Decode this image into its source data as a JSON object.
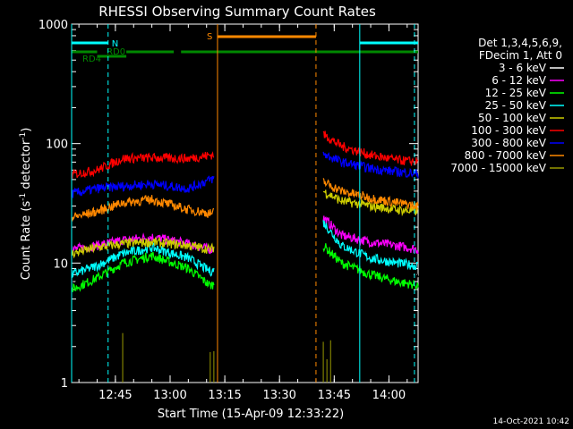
{
  "chart_data": {
    "type": "line",
    "title": "RHESSI Observing Summary Count Rates",
    "xlabel": "Start Time (15-Apr-09 12:33:22)",
    "ylabel_main": "Count Rate (s",
    "ylabel_sup1": "-1",
    "ylabel_mid": " detector",
    "ylabel_sup2": "-1",
    "ylabel_end": ")",
    "y_scale": "log",
    "ylim": [
      1,
      1000
    ],
    "xlim": [
      "12:33",
      "14:08"
    ],
    "x_ticks": [
      "12:45",
      "13:00",
      "13:15",
      "13:30",
      "13:45",
      "14:00"
    ],
    "y_ticks": [
      "1",
      "10",
      "100",
      "1000"
    ],
    "timestamp": "14-Oct-2021 10:42",
    "legend": {
      "header1": "Det 1,3,4,5,6,9,",
      "header2": "FDecim 1, Att 0",
      "placement": "right"
    },
    "series": [
      {
        "name": "3 - 6 keV",
        "color": "#000000",
        "x": [
          "12:33",
          "12:40",
          "12:47",
          "12:55",
          "13:05",
          "13:11",
          "13:42",
          "13:47",
          "13:55",
          "14:02",
          "14:08"
        ],
        "y": [
          6.5,
          7.5,
          11,
          12.5,
          10,
          7,
          16,
          11,
          9.5,
          8.5,
          8
        ]
      },
      {
        "name": "6 - 12 keV",
        "color": "#ff00ff",
        "x": [
          "12:33",
          "12:40",
          "12:47",
          "12:55",
          "13:05",
          "13:11",
          "13:42",
          "13:47",
          "13:55",
          "14:02",
          "14:08"
        ],
        "y": [
          13,
          14,
          15.5,
          16.5,
          14.5,
          13,
          24,
          17,
          15,
          14,
          13
        ]
      },
      {
        "name": "12 - 25 keV",
        "color": "#00ff00",
        "x": [
          "12:33",
          "12:40",
          "12:47",
          "12:55",
          "13:05",
          "13:11",
          "13:42",
          "13:47",
          "13:55",
          "14:02",
          "14:08"
        ],
        "y": [
          6,
          7.5,
          10,
          11.5,
          9,
          6.5,
          14,
          10,
          8,
          7,
          6.5
        ]
      },
      {
        "name": "25 - 50 keV",
        "color": "#00ffff",
        "x": [
          "12:33",
          "12:40",
          "12:47",
          "12:55",
          "13:05",
          "13:11",
          "13:42",
          "13:47",
          "13:55",
          "14:02",
          "14:08"
        ],
        "y": [
          8,
          9.5,
          12,
          13.5,
          11,
          8.5,
          22,
          14,
          11,
          10,
          9.5
        ]
      },
      {
        "name": "50 - 100 keV",
        "color": "#cccc00",
        "x": [
          "12:33",
          "12:40",
          "12:47",
          "12:55",
          "13:05",
          "13:11",
          "13:42",
          "13:47",
          "13:55",
          "14:02",
          "14:08"
        ],
        "y": [
          12,
          13.5,
          14.5,
          15,
          14,
          13,
          40,
          33,
          30,
          28,
          27
        ]
      },
      {
        "name": "100 - 300 keV",
        "color": "#ff0000",
        "x": [
          "12:33",
          "12:40",
          "12:47",
          "12:55",
          "13:05",
          "13:11",
          "13:42",
          "13:47",
          "13:55",
          "14:02",
          "14:08"
        ],
        "y": [
          55,
          60,
          75,
          76,
          75,
          80,
          120,
          95,
          80,
          73,
          70
        ]
      },
      {
        "name": "300 - 800 keV",
        "color": "#0000ff",
        "x": [
          "12:33",
          "12:40",
          "12:47",
          "12:55",
          "13:05",
          "13:11",
          "13:42",
          "13:47",
          "13:55",
          "14:02",
          "14:08"
        ],
        "y": [
          38,
          42,
          44,
          46,
          42,
          50,
          82,
          70,
          62,
          58,
          56
        ]
      },
      {
        "name": "800 - 7000 keV",
        "color": "#ff8800",
        "x": [
          "12:33",
          "12:40",
          "12:47",
          "12:55",
          "13:05",
          "13:11",
          "13:42",
          "13:47",
          "13:55",
          "14:02",
          "14:08"
        ],
        "y": [
          24,
          27,
          32,
          34,
          28,
          26,
          48,
          40,
          35,
          32,
          30
        ]
      },
      {
        "name": "7000 - 15000 keV",
        "color": "#999900",
        "x": [
          "12:33",
          "12:40",
          "12:47",
          "12:55",
          "13:05",
          "13:11",
          "13:42",
          "13:47",
          "13:55",
          "14:02",
          "14:08"
        ],
        "y": [
          1,
          1,
          1,
          1,
          1,
          1,
          1,
          1,
          1,
          1,
          1
        ]
      }
    ],
    "bars": [
      {
        "name": "N",
        "color": "#00ffff",
        "segments": [
          [
            "12:33",
            "12:43"
          ],
          [
            "13:52",
            "14:08"
          ]
        ]
      },
      {
        "name": "RD0",
        "color": "#008800",
        "segments": [
          [
            "12:40",
            "12:48"
          ]
        ]
      },
      {
        "name": "RD4",
        "color": "#008800",
        "segments": [
          [
            "12:33",
            "12:40"
          ],
          [
            "12:48",
            "13:01"
          ],
          [
            "13:03",
            "14:08"
          ]
        ]
      },
      {
        "name": "S",
        "color": "#ff8800",
        "segments": [
          [
            "13:13",
            "13:40"
          ]
        ]
      }
    ]
  }
}
